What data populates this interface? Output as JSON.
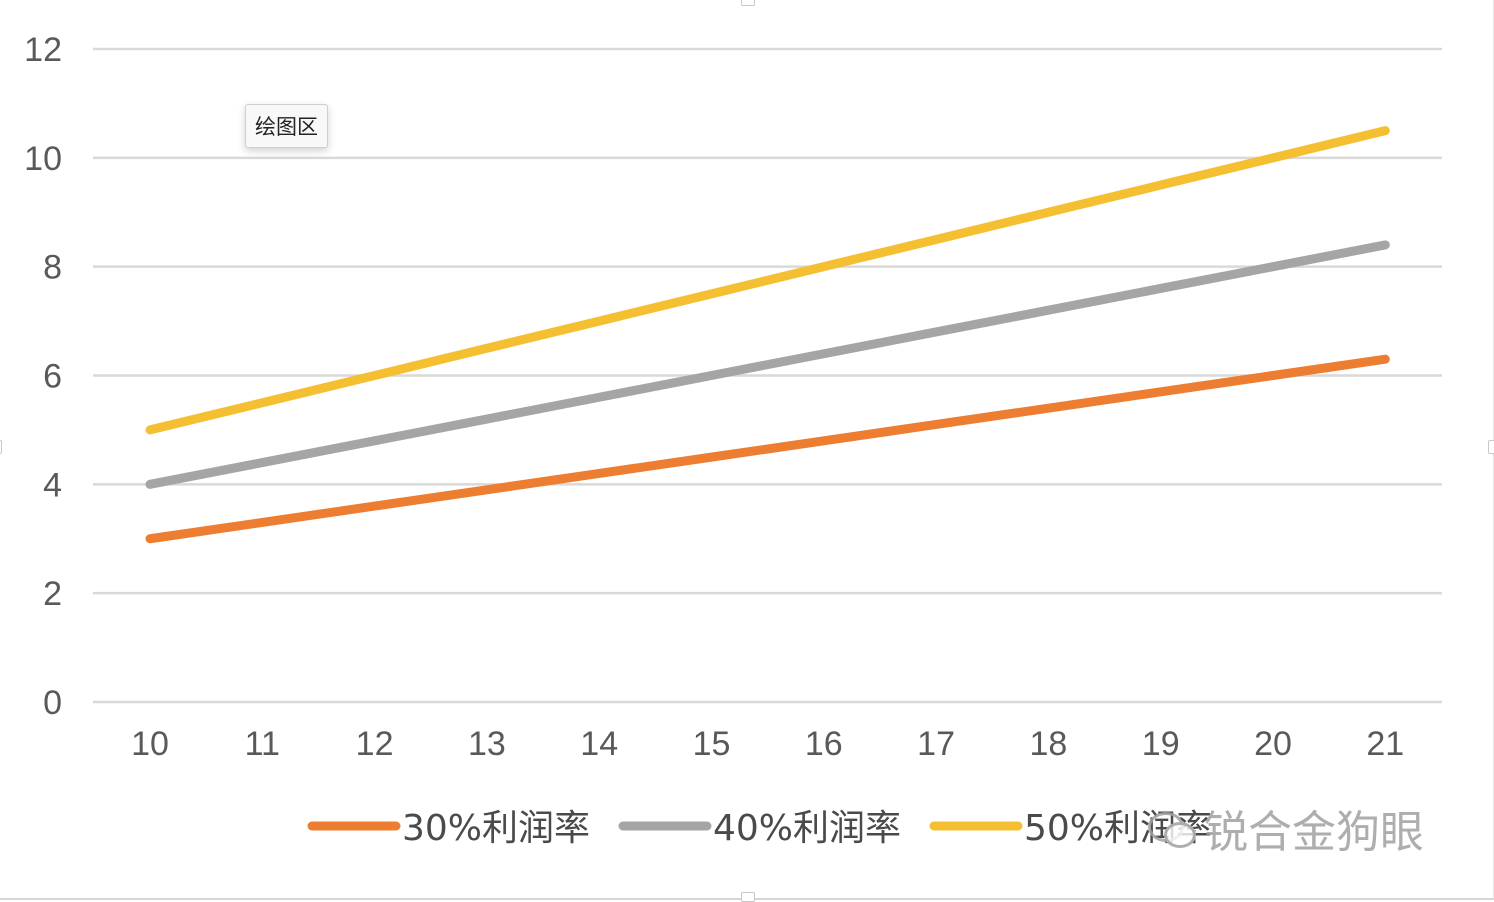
{
  "chart_data": {
    "type": "line",
    "categories": [
      "10",
      "11",
      "12",
      "13",
      "14",
      "15",
      "16",
      "17",
      "18",
      "19",
      "20",
      "21"
    ],
    "x": [
      10,
      11,
      12,
      13,
      14,
      15,
      16,
      17,
      18,
      19,
      20,
      21
    ],
    "series": [
      {
        "name": "30%利润率",
        "color": "#ed7d31",
        "values": [
          3.0,
          3.3,
          3.6,
          3.9,
          4.2,
          4.5,
          4.8,
          5.1,
          5.4,
          5.7,
          6.0,
          6.3
        ]
      },
      {
        "name": "40%利润率",
        "color": "#a5a5a5",
        "values": [
          4.0,
          4.4,
          4.8,
          5.2,
          5.6,
          6.0,
          6.4,
          6.8,
          7.2,
          7.6,
          8.0,
          8.4
        ]
      },
      {
        "name": "50%利润率",
        "color": "#f4bf31",
        "values": [
          5.0,
          5.5,
          6.0,
          6.5,
          7.0,
          7.5,
          8.0,
          8.5,
          9.0,
          9.5,
          10.0,
          10.5
        ]
      }
    ],
    "yticks": [
      "0",
      "2",
      "4",
      "6",
      "8",
      "10",
      "12"
    ],
    "ylim": [
      0,
      12
    ],
    "grid": true,
    "gridline_color": "#d9d9d9",
    "legend_position": "bottom"
  },
  "tooltip": {
    "text": "绘图区"
  },
  "watermark": {
    "text": "锐合金狗眼"
  }
}
